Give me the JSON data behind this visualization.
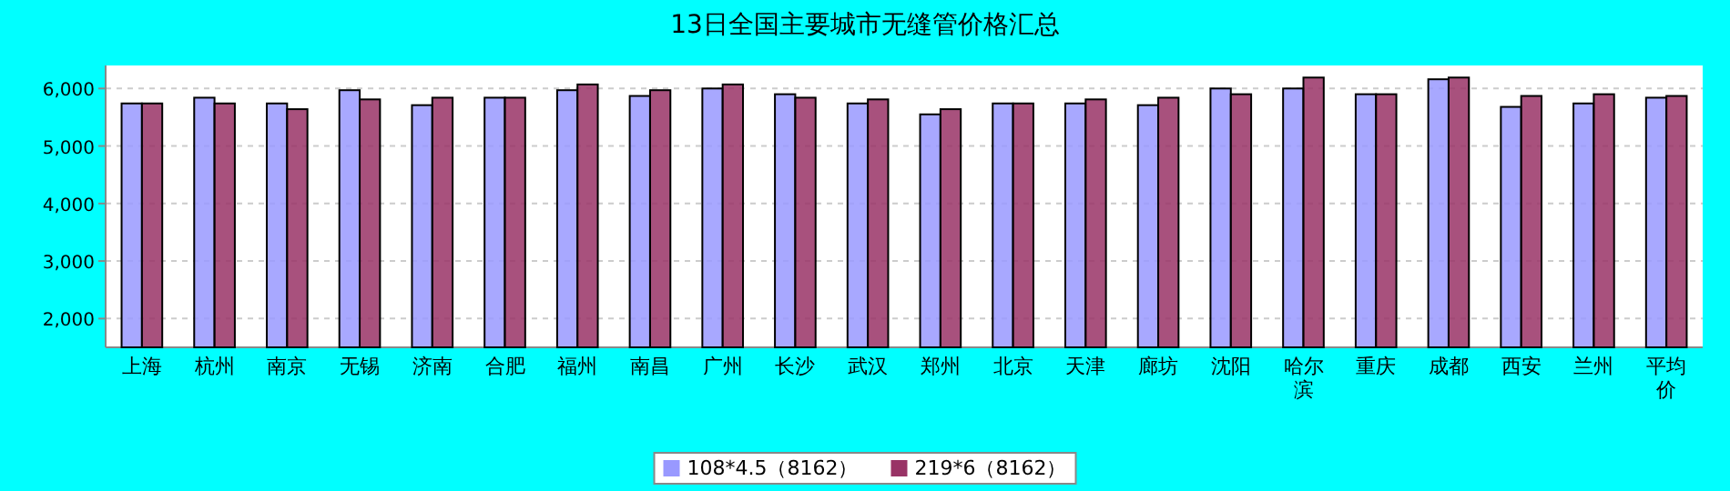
{
  "chart_data": {
    "type": "bar",
    "title": "13日全国主要城市无缝管价格汇总",
    "categories": [
      "上海",
      "杭州",
      "南京",
      "无锡",
      "济南",
      "合肥",
      "福州",
      "南昌",
      "广州",
      "长沙",
      "武汉",
      "郑州",
      "北京",
      "天津",
      "廊坊",
      "沈阳",
      "哈尔滨",
      "重庆",
      "成都",
      "西安",
      "兰州",
      "平均价"
    ],
    "series": [
      {
        "name": "108*4.5（8162）",
        "color": "#9999ff",
        "values": [
          5740,
          5840,
          5740,
          5970,
          5710,
          5840,
          5970,
          5870,
          6000,
          5900,
          5740,
          5550,
          5740,
          5740,
          5710,
          6000,
          6000,
          5900,
          6160,
          5680,
          5740,
          5840
        ]
      },
      {
        "name": "219*6（8162）",
        "color": "#993366",
        "values": [
          5740,
          5740,
          5640,
          5810,
          5840,
          5840,
          6070,
          5970,
          6070,
          5840,
          5810,
          5640,
          5740,
          5810,
          5840,
          5900,
          6190,
          5900,
          6190,
          5870,
          5900,
          5870
        ]
      }
    ],
    "ylim": [
      1500,
      6400
    ],
    "yticks": [
      {
        "value": 2000,
        "label": "2,000"
      },
      {
        "value": 3000,
        "label": "3,000"
      },
      {
        "value": 4000,
        "label": "4,000"
      },
      {
        "value": 5000,
        "label": "5,000"
      },
      {
        "value": 6000,
        "label": "6,000"
      }
    ],
    "grid": "y",
    "legend": "bottom"
  }
}
